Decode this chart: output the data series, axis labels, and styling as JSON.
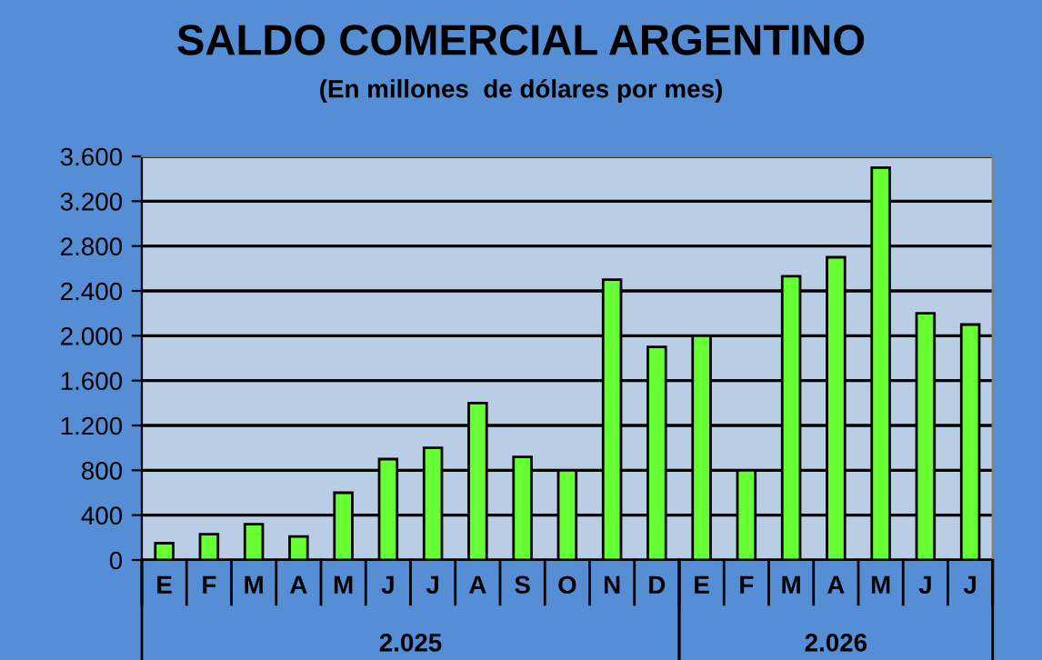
{
  "chart_data": {
    "type": "bar",
    "title": "SALDO COMERCIAL ARGENTINO",
    "subtitle": "(En millones  de dólares por mes)",
    "categories": [
      "E",
      "F",
      "M",
      "A",
      "M",
      "J",
      "J",
      "A",
      "S",
      "O",
      "N",
      "D",
      "E",
      "F",
      "M",
      "A",
      "M",
      "J",
      "J"
    ],
    "values": [
      150,
      230,
      320,
      210,
      600,
      900,
      1000,
      1400,
      920,
      800,
      2500,
      1900,
      2000,
      800,
      2530,
      2700,
      3500,
      2200,
      2100
    ],
    "color": "#66ff33",
    "annotations": [
      "2.025",
      "2.026"
    ],
    "ylim": [
      0,
      3600
    ],
    "yticks": [
      0,
      400,
      800,
      {
        "value": 1200,
        "label": "1.200"
      },
      {
        "value": 1600,
        "label": "1.600"
      },
      {
        "value": 2000,
        "label": "2.000"
      },
      {
        "value": 2400,
        "label": "2.400"
      },
      {
        "value": 2800,
        "label": "2.800"
      },
      {
        "value": 3200,
        "label": "3.200"
      },
      {
        "value": 3600,
        "label": "3.600"
      }
    ],
    "grid": "y",
    "legend": false
  }
}
